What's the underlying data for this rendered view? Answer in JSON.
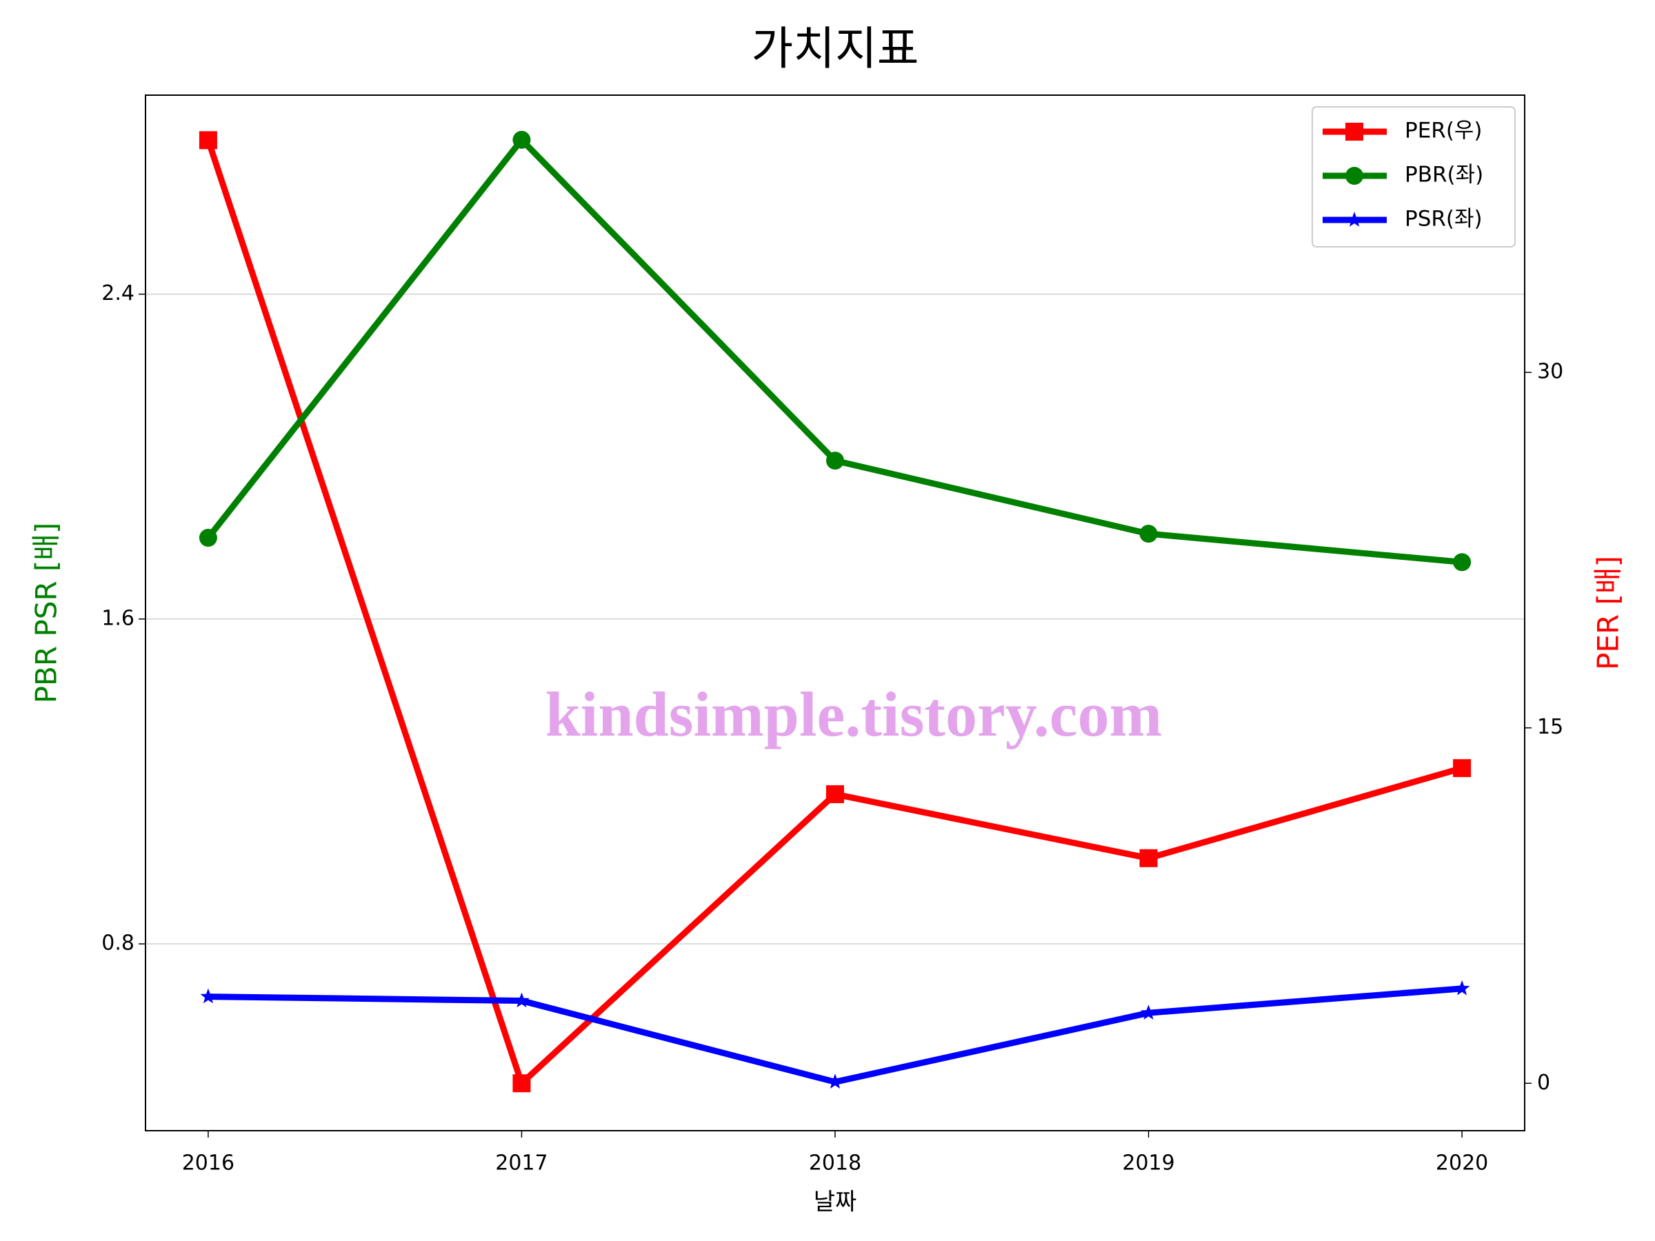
{
  "chart_data": {
    "type": "line",
    "title": "가치지표",
    "x": [
      2016,
      2017,
      2018,
      2019,
      2020
    ],
    "xlim": [
      2015.8,
      2020.2
    ],
    "xticks": [
      2016,
      2017,
      2018,
      2019,
      2020
    ],
    "xlabel": "날짜",
    "ylabel": "PBR PSR [배]",
    "ylim": [
      0.34,
      2.89
    ],
    "yticks": [
      0.8,
      1.6,
      2.4
    ],
    "y2label": "PER [배]",
    "y2lim": [
      -2,
      41.7
    ],
    "y2ticks": [
      0,
      15,
      30
    ],
    "grid": true,
    "legend": "upper right",
    "annotation": "kindsimple.tistory.com",
    "series": [
      {
        "name": "PER(우)",
        "color": "#ff0000",
        "marker": "square",
        "axis": "y2",
        "values": [
          39.8,
          0,
          12.2,
          9.5,
          13.3
        ]
      },
      {
        "name": "PBR(좌)",
        "color": "#008000",
        "marker": "circle",
        "values": [
          1.8,
          2.78,
          1.99,
          1.81,
          1.74
        ]
      },
      {
        "name": "PSR(좌)",
        "color": "#0000ff",
        "marker": "star",
        "values": [
          0.67,
          0.66,
          0.46,
          0.63,
          0.69
        ]
      }
    ]
  }
}
